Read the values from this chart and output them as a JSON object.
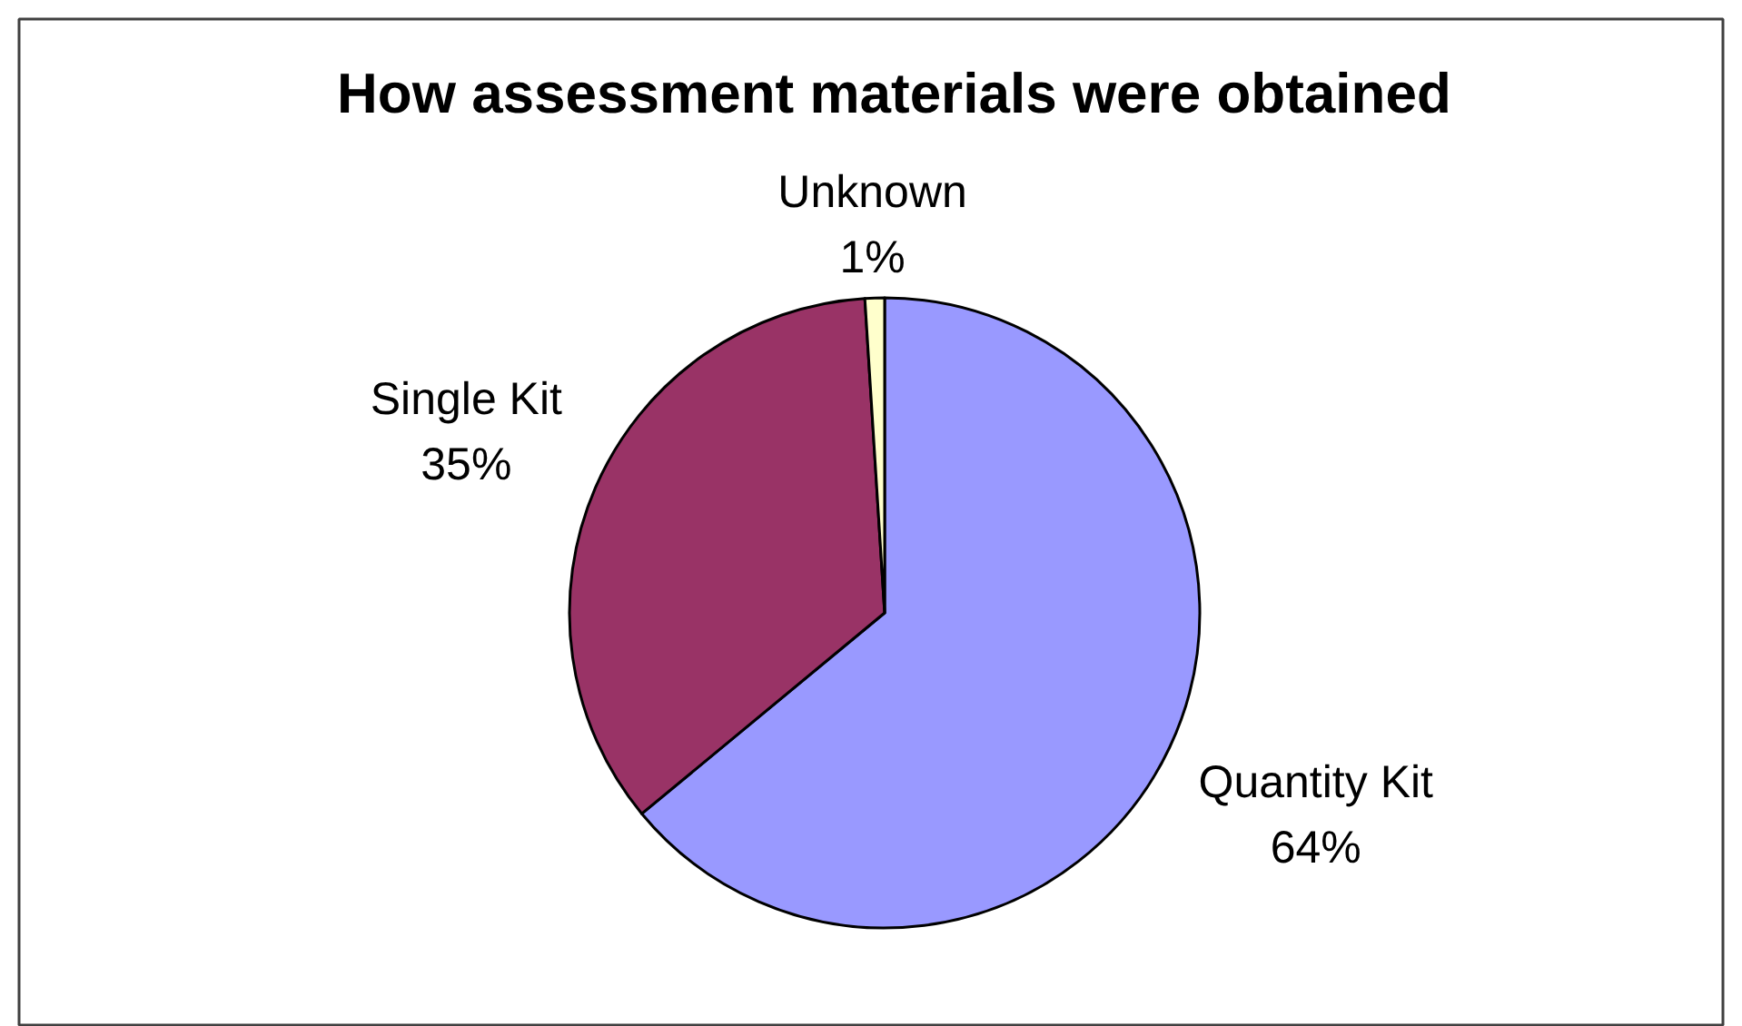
{
  "chart_data": {
    "type": "pie",
    "title": "How assessment materials were obtained",
    "categories": [
      "Quantity Kit",
      "Single Kit",
      "Unknown"
    ],
    "values": [
      64,
      35,
      1
    ],
    "colors": [
      "#9999ff",
      "#993366",
      "#ffffcc"
    ],
    "value_labels": [
      "64%",
      "35%",
      "1%"
    ]
  }
}
